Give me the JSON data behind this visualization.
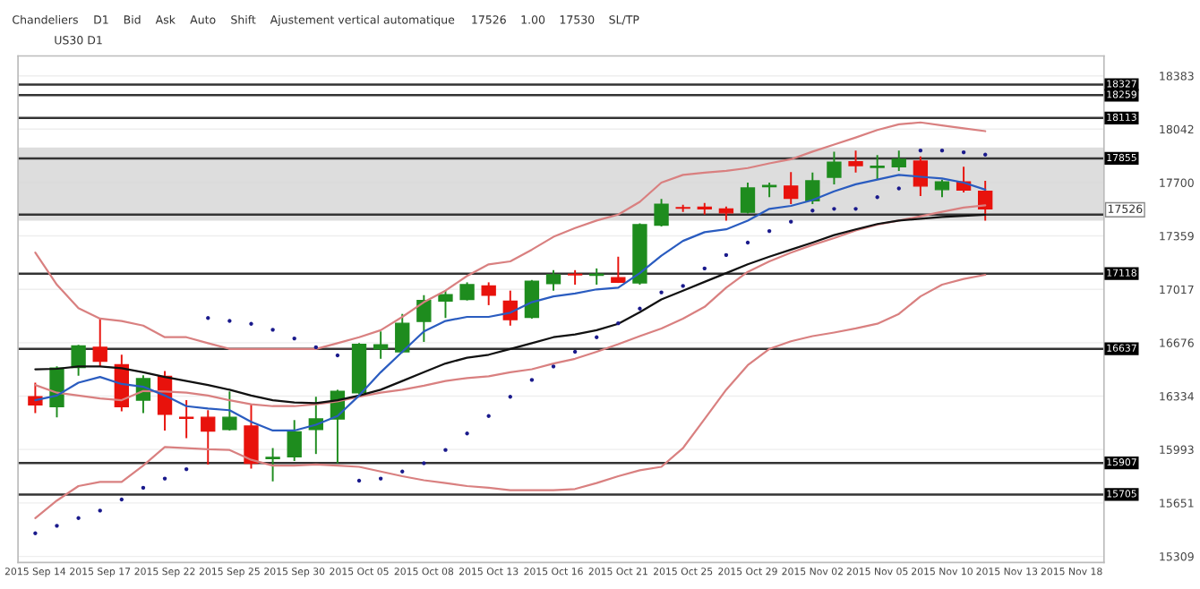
{
  "chart_data": {
    "type": "candlestick",
    "title": "US30 D1",
    "annotations": [
      "Chandeliers",
      "D1",
      "Bid",
      "Ask",
      "Auto",
      "Shift",
      "Ajustement vertical automatique",
      "17526",
      "1.00",
      "17530",
      "SL/TP",
      {
        "text": "17526",
        "y": 17526
      }
    ],
    "categories": [
      "2015 Sep 14",
      null,
      null,
      "2015 Sep 17",
      null,
      null,
      "2015 Sep 22",
      null,
      null,
      "2015 Sep 25",
      null,
      null,
      "2015 Sep 30",
      null,
      null,
      "2015 Oct 05",
      null,
      null,
      "2015 Oct 08",
      null,
      null,
      "2015 Oct 13",
      null,
      null,
      "2015 Oct 16",
      null,
      null,
      "2015 Oct 21",
      null,
      null,
      "2015 Oct 25",
      null,
      null,
      "2015 Oct 29",
      null,
      null,
      "2015 Nov 02",
      null,
      null,
      "2015 Nov 05",
      null,
      null,
      "2015 Nov 10",
      null,
      null,
      "2015 Nov 13",
      null,
      null,
      "2015 Nov 18",
      null
    ],
    "ohlc": [
      [
        16330,
        16420,
        16226,
        16278
      ],
      [
        16267,
        16524,
        16199,
        16513
      ],
      [
        16517,
        16662,
        16464,
        16655
      ],
      [
        16647,
        16834,
        16524,
        16558
      ],
      [
        16535,
        16599,
        16237,
        16267
      ],
      [
        16308,
        16468,
        16226,
        16446
      ],
      [
        16461,
        16494,
        16114,
        16218
      ],
      [
        16199,
        16308,
        16065,
        16192
      ],
      [
        16199,
        16244,
        15897,
        16110
      ],
      [
        16121,
        16364,
        16114,
        16199
      ],
      [
        16143,
        16282,
        15871,
        15905
      ],
      [
        15934,
        16002,
        15789,
        15942
      ],
      [
        15946,
        16181,
        15919,
        16106
      ],
      [
        16121,
        16330,
        15964,
        16188
      ],
      [
        16188,
        16375,
        15905,
        16364
      ],
      [
        16356,
        16673,
        16345,
        16666
      ],
      [
        16636,
        16748,
        16573,
        16662
      ],
      [
        16618,
        16860,
        16610,
        16800
      ],
      [
        16812,
        16980,
        16681,
        16946
      ],
      [
        16942,
        17009,
        16834,
        16983
      ],
      [
        16953,
        17062,
        16946,
        17047
      ],
      [
        17039,
        17062,
        16916,
        16980
      ],
      [
        16942,
        17009,
        16785,
        16823
      ],
      [
        16838,
        17077,
        16830,
        17069
      ],
      [
        17054,
        17140,
        17009,
        17110
      ],
      [
        17114,
        17140,
        17047,
        17110
      ],
      [
        17107,
        17151,
        17047,
        17114
      ],
      [
        17092,
        17226,
        17058,
        17062
      ],
      [
        17058,
        17439,
        17047,
        17431
      ],
      [
        17428,
        17596,
        17420,
        17562
      ],
      [
        17540,
        17558,
        17513,
        17536
      ],
      [
        17543,
        17569,
        17495,
        17532
      ],
      [
        17532,
        17547,
        17457,
        17506
      ],
      [
        17510,
        17700,
        17502,
        17666
      ],
      [
        17674,
        17700,
        17607,
        17681
      ],
      [
        17678,
        17767,
        17562,
        17599
      ],
      [
        17584,
        17764,
        17562,
        17711
      ],
      [
        17734,
        17898,
        17689,
        17831
      ],
      [
        17834,
        17905,
        17764,
        17808
      ],
      [
        17797,
        17876,
        17719,
        17805
      ],
      [
        17801,
        17905,
        17775,
        17849
      ],
      [
        17838,
        17868,
        17614,
        17678
      ],
      [
        17655,
        17719,
        17607,
        17704
      ],
      [
        17704,
        17801,
        17637,
        17652
      ],
      [
        17644,
        17711,
        17457,
        17532
      ],
      null,
      null,
      null,
      null,
      null
    ],
    "colors": [
      "#e8120c",
      "#1e8c1e",
      "#1e8c1e",
      "#e8120c",
      "#e8120c",
      "#1e8c1e",
      "#e8120c",
      "#e8120c",
      "#e8120c",
      "#1e8c1e",
      "#e8120c",
      "#1e8c1e",
      "#1e8c1e",
      "#1e8c1e",
      "#1e8c1e",
      "#1e8c1e",
      "#1e8c1e",
      "#1e8c1e",
      "#1e8c1e",
      "#1e8c1e",
      "#1e8c1e",
      "#e8120c",
      "#e8120c",
      "#1e8c1e",
      "#1e8c1e",
      "#e8120c",
      "#1e8c1e",
      "#e8120c",
      "#1e8c1e",
      "#1e8c1e",
      "#e8120c",
      "#e8120c",
      "#e8120c",
      "#1e8c1e",
      "#1e8c1e",
      "#e8120c",
      "#1e8c1e",
      "#1e8c1e",
      "#e8120c",
      "#1e8c1e",
      "#1e8c1e",
      "#e8120c",
      "#1e8c1e",
      "#e8120c",
      "#e8120c",
      null,
      null,
      null,
      null,
      null
    ],
    "series": [
      {
        "type": "line",
        "color": "#d98080",
        "values": [
          17252,
          17047,
          16897,
          16830,
          16815,
          16785,
          16711,
          16711,
          16673,
          16636,
          16636,
          16636,
          16636,
          16636,
          16673,
          16711,
          16756,
          16841,
          16935,
          17009,
          17103,
          17177,
          17196,
          17271,
          17353,
          17409,
          17457,
          17495,
          17577,
          17700,
          17749,
          17764,
          17775,
          17793,
          17823,
          17849,
          17898,
          17943,
          17988,
          18036,
          18073,
          18085,
          18066,
          18047,
          18029,
          null,
          null,
          null,
          null,
          null
        ]
      },
      {
        "type": "line",
        "color": "#d98080",
        "values": [
          16405,
          16356,
          16338,
          16319,
          16308,
          16367,
          16364,
          16356,
          16338,
          16308,
          16282,
          16270,
          16270,
          16282,
          16300,
          16330,
          16356,
          16375,
          16401,
          16431,
          16450,
          16461,
          16487,
          16506,
          16543,
          16573,
          16618,
          16666,
          16718,
          16767,
          16830,
          16905,
          17028,
          17129,
          17196,
          17252,
          17301,
          17345,
          17394,
          17431,
          17457,
          17484,
          17513,
          17540,
          17554,
          null,
          null,
          null,
          null,
          null
        ]
      },
      {
        "type": "line",
        "color": "#d98080",
        "values": [
          15554,
          15666,
          15759,
          15785,
          15785,
          15890,
          16009,
          16002,
          15994,
          15990,
          15927,
          15890,
          15890,
          15897,
          15890,
          15882,
          15852,
          15822,
          15796,
          15778,
          15759,
          15748,
          15733,
          15733,
          15733,
          15740,
          15778,
          15822,
          15860,
          15882,
          16002,
          16188,
          16375,
          16532,
          16636,
          16685,
          16718,
          16741,
          16767,
          16797,
          16860,
          16972,
          17047,
          17084,
          17110,
          null,
          null,
          null,
          null,
          null
        ]
      },
      {
        "type": "line",
        "color": "#111111",
        "values": [
          16506,
          16509,
          16524,
          16524,
          16513,
          16487,
          16457,
          16431,
          16405,
          16375,
          16338,
          16308,
          16293,
          16289,
          16308,
          16338,
          16375,
          16431,
          16487,
          16543,
          16580,
          16599,
          16636,
          16673,
          16711,
          16729,
          16756,
          16797,
          16871,
          16953,
          17009,
          17065,
          17121,
          17177,
          17226,
          17271,
          17316,
          17364,
          17401,
          17435,
          17457,
          17469,
          17480,
          17487,
          17495,
          null,
          null,
          null,
          null,
          null
        ]
      },
      {
        "type": "line",
        "color": "#2a5cc0",
        "values": [
          16308,
          16338,
          16420,
          16457,
          16412,
          16394,
          16338,
          16270,
          16255,
          16244,
          16170,
          16114,
          16114,
          16151,
          16207,
          16338,
          16487,
          16618,
          16748,
          16815,
          16841,
          16841,
          16868,
          16935,
          16972,
          16991,
          17017,
          17028,
          17121,
          17233,
          17327,
          17383,
          17401,
          17457,
          17532,
          17551,
          17588,
          17644,
          17689,
          17719,
          17749,
          17737,
          17726,
          17700,
          17655,
          null,
          null,
          null,
          null,
          null
        ]
      },
      {
        "type": "scatter",
        "color": "#1a1a8c",
        "marker": "circle",
        "values": [
          15457,
          15505,
          15554,
          15602,
          15673,
          15748,
          15807,
          15867,
          16834,
          16815,
          16797,
          16759,
          16703,
          16647,
          16595,
          15793,
          15807,
          15852,
          15905,
          15990,
          16095,
          16207,
          16330,
          16438,
          16524,
          16618,
          16711,
          16800,
          16894,
          16998,
          17039,
          17151,
          17237,
          17316,
          17390,
          17450,
          17521,
          17532,
          17532,
          17607,
          17663,
          17905,
          17905,
          17894,
          17879,
          null,
          null,
          null,
          null,
          null
        ]
      }
    ],
    "ylim": [
      15270,
      18510
    ],
    "yticks": [
      18383,
      18042,
      17700,
      17359,
      17017,
      16676,
      16334,
      15993,
      15651,
      15309
    ],
    "ref_lines": [
      {
        "axis": "y",
        "value": 18327,
        "label": "18327",
        "color": "#333333"
      },
      {
        "axis": "y",
        "value": 18259,
        "label": "18259",
        "color": "#333333"
      },
      {
        "axis": "y",
        "value": 18113,
        "label": "18113",
        "color": "#333333"
      },
      {
        "axis": "y",
        "value": 17855,
        "label": "17855",
        "color": "#333333"
      },
      {
        "axis": "y",
        "value": 17495,
        "label": null,
        "color": "#333333"
      },
      {
        "axis": "y",
        "value": 17118,
        "label": "17118",
        "color": "#333333"
      },
      {
        "axis": "y",
        "value": 16637,
        "label": "16637",
        "color": "#333333"
      },
      {
        "axis": "y",
        "value": 15907,
        "label": "15907",
        "color": "#333333"
      },
      {
        "axis": "y",
        "value": 15705,
        "label": "15705",
        "color": "#333333"
      }
    ],
    "bands": [
      {
        "axis": "y",
        "from": 17457,
        "to": 17924,
        "color": "#d4d4d4"
      }
    ],
    "grid": "y"
  }
}
